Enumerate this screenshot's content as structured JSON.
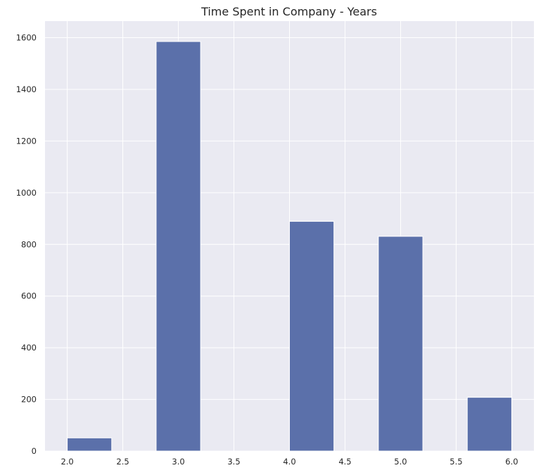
{
  "chart_data": {
    "type": "bar",
    "title": "Time Spent in Company - Years",
    "xlabel": "",
    "ylabel": "",
    "bins": [
      {
        "x0": 2.0,
        "x1": 2.4,
        "value": 51
      },
      {
        "x0": 2.4,
        "x1": 2.8,
        "value": 0
      },
      {
        "x0": 2.8,
        "x1": 3.2,
        "value": 1585
      },
      {
        "x0": 3.2,
        "x1": 3.6,
        "value": 0
      },
      {
        "x0": 3.6,
        "x1": 4.0,
        "value": 0
      },
      {
        "x0": 4.0,
        "x1": 4.4,
        "value": 889
      },
      {
        "x0": 4.4,
        "x1": 4.8,
        "value": 0
      },
      {
        "x0": 4.8,
        "x1": 5.2,
        "value": 831
      },
      {
        "x0": 5.2,
        "x1": 5.6,
        "value": 0
      },
      {
        "x0": 5.6,
        "x1": 6.0,
        "value": 208
      }
    ],
    "xlim": [
      1.8,
      6.2
    ],
    "ylim": [
      0,
      1664
    ],
    "xticks": [
      2.0,
      2.5,
      3.0,
      3.5,
      4.0,
      4.5,
      5.0,
      5.5,
      6.0
    ],
    "xtick_labels": [
      "2.0",
      "2.5",
      "3.0",
      "3.5",
      "4.0",
      "4.5",
      "5.0",
      "5.5",
      "6.0"
    ],
    "yticks": [
      0,
      200,
      400,
      600,
      800,
      1000,
      1200,
      1400,
      1600
    ],
    "ytick_labels": [
      "0",
      "200",
      "400",
      "600",
      "800",
      "1000",
      "1200",
      "1400",
      "1600"
    ],
    "grid": true,
    "colors": {
      "bar": "#5b70aa",
      "plot_background": "#eaeaf2",
      "grid": "#ffffff"
    }
  }
}
